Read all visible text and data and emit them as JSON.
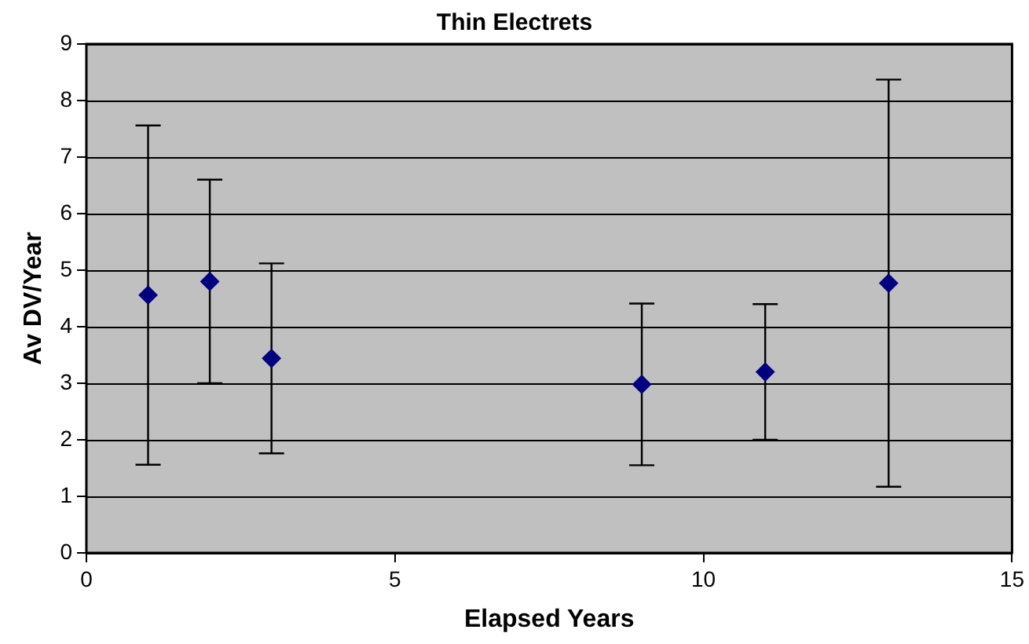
{
  "chart_data": {
    "type": "scatter",
    "title": "Thin Electrets",
    "xlabel": "Elapsed Years",
    "ylabel": "Av DV/Year",
    "x": [
      1,
      2,
      3,
      9,
      11,
      13
    ],
    "values": [
      4.56,
      4.8,
      3.44,
      2.98,
      3.2,
      4.77
    ],
    "errors": [
      3.0,
      1.8,
      1.68,
      1.43,
      1.2,
      3.6
    ],
    "color": "#000080",
    "xlim": [
      0,
      15
    ],
    "xticks": [
      0,
      5,
      10,
      15
    ],
    "ylim": [
      0,
      9
    ],
    "yticks": [
      0,
      1,
      2,
      3,
      4,
      5,
      6,
      7,
      8,
      9
    ],
    "grid": "y",
    "legend": false,
    "marker": "diamond"
  }
}
